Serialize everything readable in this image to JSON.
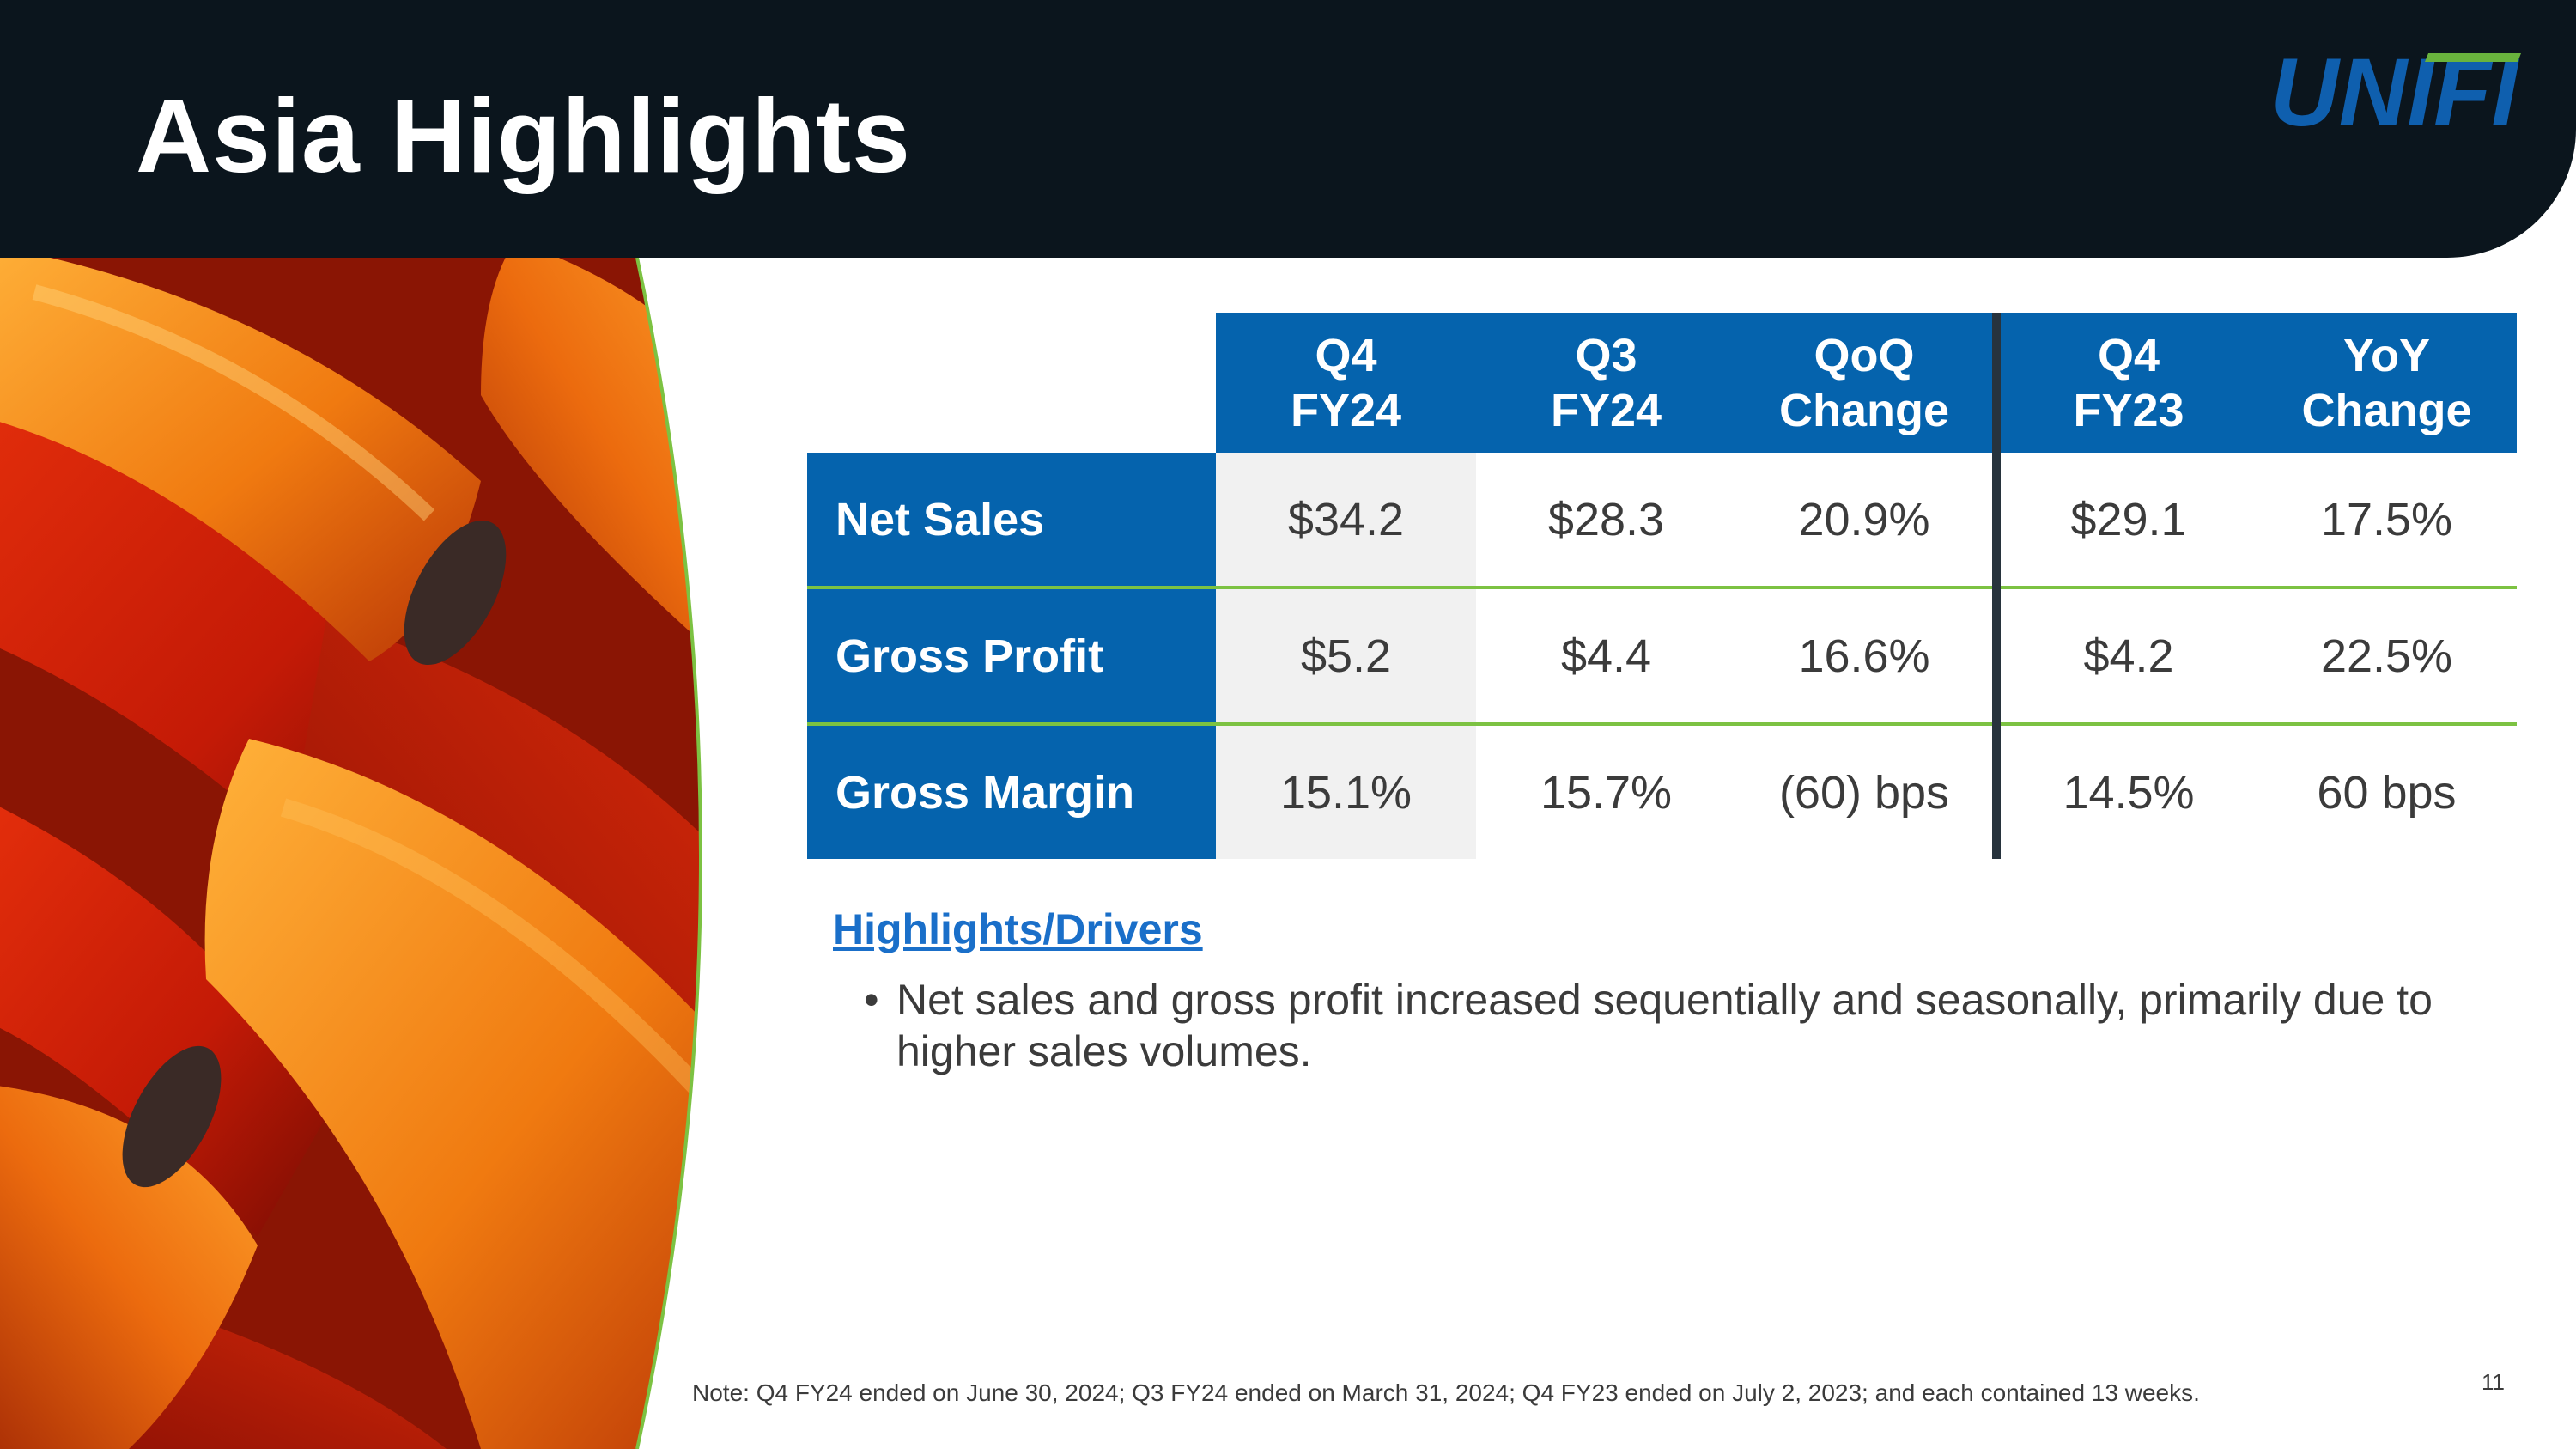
{
  "slide": {
    "title": "Asia Highlights",
    "logo_text": "UNIFI",
    "colors": {
      "header_bg": "#0b151d",
      "table_blue": "#0563ad",
      "accent_green": "#7cc242",
      "link_blue": "#1a6fc9",
      "logo_blue": "#0f5fae",
      "logo_green": "#69b33d"
    }
  },
  "table": {
    "columns": [
      {
        "line1": "Q4",
        "line2": "FY24"
      },
      {
        "line1": "Q3",
        "line2": "FY24"
      },
      {
        "line1": "QoQ",
        "line2": "Change"
      },
      {
        "line1": "Q4",
        "line2": "FY23"
      },
      {
        "line1": "YoY",
        "line2": "Change"
      }
    ],
    "rows": [
      {
        "label": "Net Sales",
        "values": [
          "$34.2",
          "$28.3",
          "20.9%",
          "$29.1",
          "17.5%"
        ]
      },
      {
        "label": "Gross Profit",
        "values": [
          "$5.2",
          "$4.4",
          "16.6%",
          "$4.2",
          "22.5%"
        ]
      },
      {
        "label": "Gross Margin",
        "values": [
          "15.1%",
          "15.7%",
          "(60) bps",
          "14.5%",
          "60 bps"
        ]
      }
    ]
  },
  "highlights": {
    "heading": "Highlights/Drivers",
    "bullet_char": "•",
    "bullets": [
      "Net sales and gross profit increased sequentially and seasonally, primarily due to higher sales volumes."
    ]
  },
  "footer": {
    "note": "Note: Q4 FY24 ended on June 30, 2024; Q3 FY24 ended on March 31, 2024; Q4 FY23 ended on July 2, 2023; and each contained 13 weeks.",
    "page_number": "11"
  }
}
